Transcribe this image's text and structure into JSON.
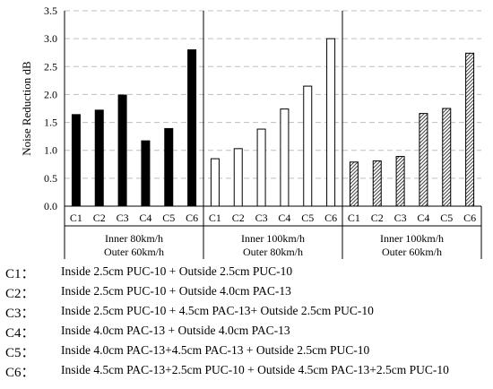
{
  "chart_data": {
    "type": "bar",
    "ylabel": "Noise Reduction dB",
    "ylim": [
      0,
      3.5
    ],
    "yticks": [
      "0.0",
      "0.5",
      "1.0",
      "1.5",
      "2.0",
      "2.5",
      "3.0",
      "3.5"
    ],
    "grid": true,
    "groups": [
      {
        "label_line1": "Inner 80km/h",
        "label_line2": "Outer 60km/h",
        "fill": "#000000",
        "pattern": "solid",
        "categories": [
          "C1",
          "C2",
          "C3",
          "C4",
          "C5",
          "C6"
        ],
        "values": [
          1.64,
          1.72,
          1.99,
          1.17,
          1.39,
          2.8
        ]
      },
      {
        "label_line1": "Inner 100km/h",
        "label_line2": "Outer 80km/h",
        "fill": "#ffffff",
        "pattern": "hollow",
        "categories": [
          "C1",
          "C2",
          "C3",
          "C4",
          "C5",
          "C6"
        ],
        "values": [
          0.85,
          1.03,
          1.38,
          1.74,
          2.15,
          3.0
        ]
      },
      {
        "label_line1": "Inner 100km/h",
        "label_line2": "Outer 60km/h",
        "fill": "#555555",
        "pattern": "diagonal-hatch",
        "categories": [
          "C1",
          "C2",
          "C3",
          "C4",
          "C5",
          "C6"
        ],
        "values": [
          0.79,
          0.81,
          0.89,
          1.66,
          1.75,
          2.74
        ]
      }
    ]
  },
  "legend": [
    {
      "code": "C1：",
      "text": "Inside 2.5cm PUC-10 + Outside 2.5cm PUC-10"
    },
    {
      "code": "C2：",
      "text": "Inside 2.5cm PUC-10 + Outside 4.0cm PAC-13"
    },
    {
      "code": "C3：",
      "text": "Inside 2.5cm PUC-10 + 4.5cm PAC-13+ Outside 2.5cm PUC-10"
    },
    {
      "code": "C4：",
      "text": "Inside 4.0cm PAC-13 + Outside 4.0cm PAC-13"
    },
    {
      "code": "C5：",
      "text": "Inside 4.0cm PAC-13+4.5cm PAC-13 + Outside 2.5cm PUC-10"
    },
    {
      "code": "C6：",
      "text": "Inside 4.5cm PAC-13+2.5cm PUC-10 + Outside 4.5cm PAC-13+2.5cm PUC-10"
    }
  ]
}
